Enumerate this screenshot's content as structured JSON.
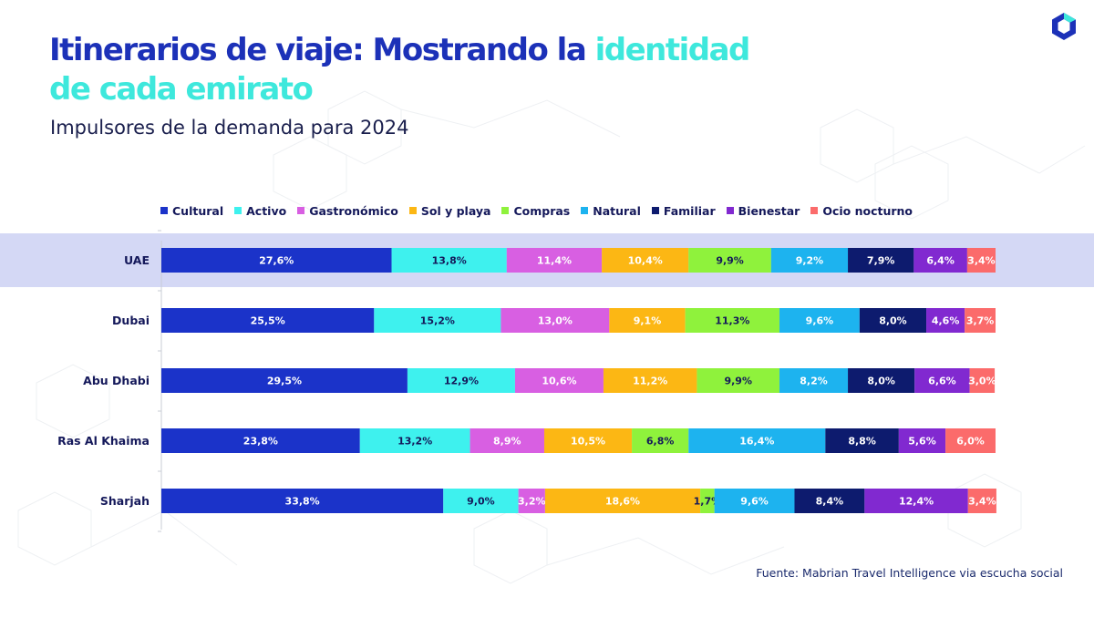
{
  "header": {
    "title_part1": "Itinerarios de viaje: Mostrando la ",
    "title_accent1": "identidad",
    "title_accent2": "de cada emirato",
    "subtitle": "Impulsores de la demanda para 2024"
  },
  "footer": {
    "source": "Fuente: Mabrian Travel Intelligence via escucha social"
  },
  "logo": {
    "icon": "hexagon-logo-icon",
    "colors": [
      "#1c31b8",
      "#3ee8dc"
    ]
  },
  "colors": {
    "title": "#1c31b8",
    "title_accent": "#3ee8dc",
    "highlight_band": "#d4d8f5"
  },
  "chart_data": {
    "type": "bar",
    "orientation": "horizontal",
    "stacked": true,
    "categories": [
      "UAE",
      "Dubai",
      "Abu Dhabi",
      "Ras Al Khaima",
      "Sharjah"
    ],
    "highlighted_category": "UAE",
    "xlim": [
      0,
      100
    ],
    "legend_position": "top",
    "series": [
      {
        "name": "Cultural",
        "color": "#1b33c9",
        "label_color": "#ffffff",
        "values": [
          27.6,
          25.5,
          29.5,
          23.8,
          33.8
        ],
        "labels": [
          "27,6%",
          "25,5%",
          "29,5%",
          "23,8%",
          "33,8%"
        ]
      },
      {
        "name": "Activo",
        "color": "#3ef1ee",
        "label_color": "#14185a",
        "values": [
          13.8,
          15.2,
          12.9,
          13.2,
          9.0
        ],
        "labels": [
          "13,8%",
          "15,2%",
          "12,9%",
          "13,2%",
          "9,0%"
        ]
      },
      {
        "name": "Gastronómico",
        "color": "#d85fe2",
        "label_color": "#ffffff",
        "values": [
          11.4,
          13.0,
          10.6,
          8.9,
          3.2
        ],
        "labels": [
          "11,4%",
          "13,0%",
          "10,6%",
          "8,9%",
          "3,2%"
        ]
      },
      {
        "name": "Sol y playa",
        "color": "#fcb714",
        "label_color": "#ffffff",
        "values": [
          10.4,
          9.1,
          11.2,
          10.5,
          18.6
        ],
        "labels": [
          "10,4%",
          "9,1%",
          "11,2%",
          "10,5%",
          "18,6%"
        ]
      },
      {
        "name": "Compras",
        "color": "#8ff23c",
        "label_color": "#14185a",
        "values": [
          9.9,
          11.3,
          9.9,
          6.8,
          1.7
        ],
        "labels": [
          "9,9%",
          "11,3%",
          "9,9%",
          "6,8%",
          "1,7%"
        ]
      },
      {
        "name": "Natural",
        "color": "#1db3ef",
        "label_color": "#ffffff",
        "values": [
          9.2,
          9.6,
          8.2,
          16.4,
          9.6
        ],
        "labels": [
          "9,2%",
          "9,6%",
          "8,2%",
          "16,4%",
          "9,6%"
        ]
      },
      {
        "name": "Familiar",
        "color": "#0d1b6e",
        "label_color": "#ffffff",
        "values": [
          7.9,
          8.0,
          8.0,
          8.8,
          8.4
        ],
        "labels": [
          "7,9%",
          "8,0%",
          "8,0%",
          "8,8%",
          "8,4%"
        ]
      },
      {
        "name": "Bienestar",
        "color": "#8129d0",
        "label_color": "#ffffff",
        "values": [
          6.4,
          4.6,
          6.6,
          5.6,
          12.4
        ],
        "labels": [
          "6,4%",
          "4,6%",
          "6,6%",
          "5,6%",
          "12,4%"
        ]
      },
      {
        "name": "Ocio nocturno",
        "color": "#fb6b6b",
        "label_color": "#ffffff",
        "values": [
          3.4,
          3.7,
          3.0,
          6.0,
          3.4
        ],
        "labels": [
          "3,4%",
          "3,7%",
          "3,0%",
          "6,0%",
          "3,4%"
        ]
      }
    ]
  }
}
